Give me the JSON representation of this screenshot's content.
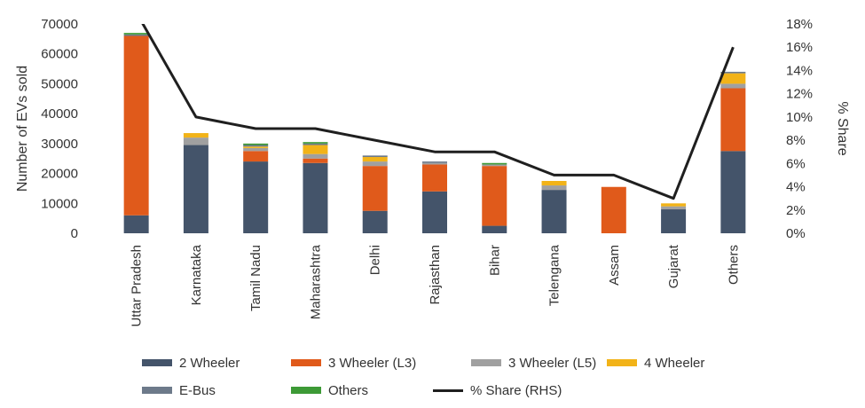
{
  "chart_data": {
    "type": "bar",
    "stacked": true,
    "categories": [
      "Uttar Pradesh",
      "Karnataka",
      "Tamil Nadu",
      "Maharashtra",
      "Delhi",
      "Rajasthan",
      "Bihar",
      "Telengana",
      "Assam",
      "Gujarat",
      "Others"
    ],
    "series": [
      {
        "name": "2 Wheeler",
        "color": "#44546a",
        "values": [
          6000,
          29500,
          24000,
          23500,
          7500,
          14000,
          2500,
          14500,
          0,
          8000,
          27500
        ]
      },
      {
        "name": "3 Wheeler (L3)",
        "color": "#e05a1b",
        "values": [
          60000,
          0,
          3500,
          1500,
          15000,
          9000,
          20000,
          0,
          15500,
          0,
          21000
        ]
      },
      {
        "name": "3 Wheeler (L5)",
        "color": "#a0a0a0",
        "values": [
          0,
          2500,
          1000,
          1500,
          1500,
          500,
          500,
          1500,
          0,
          1000,
          1500
        ]
      },
      {
        "name": "4 Wheeler",
        "color": "#f2b318",
        "values": [
          0,
          1500,
          500,
          3000,
          1500,
          0,
          0,
          1500,
          0,
          1000,
          3500
        ]
      },
      {
        "name": "E-Bus",
        "color": "#6d7a8a",
        "values": [
          500,
          0,
          500,
          500,
          500,
          500,
          0,
          0,
          0,
          0,
          500
        ]
      },
      {
        "name": "Others",
        "color": "#3d9a36",
        "values": [
          500,
          0,
          500,
          500,
          0,
          0,
          500,
          0,
          0,
          0,
          0
        ]
      }
    ],
    "line_series": {
      "name": "% Share (RHS)",
      "color": "#1f1f1f",
      "values": [
        19,
        10,
        9,
        9,
        8,
        7,
        7,
        5,
        5,
        3,
        16
      ]
    },
    "ylabel": "Number of EVs sold",
    "ylabel_right": "% Share",
    "ylim": [
      0,
      70000
    ],
    "yticks": [
      "0",
      "10000",
      "20000",
      "30000",
      "40000",
      "50000",
      "60000",
      "70000"
    ],
    "ylim_right": [
      0,
      18
    ],
    "yticks_right": [
      "0%",
      "2%",
      "4%",
      "6%",
      "8%",
      "10%",
      "12%",
      "14%",
      "16%",
      "18%"
    ],
    "legend_placement": "bottom",
    "grid": false
  }
}
